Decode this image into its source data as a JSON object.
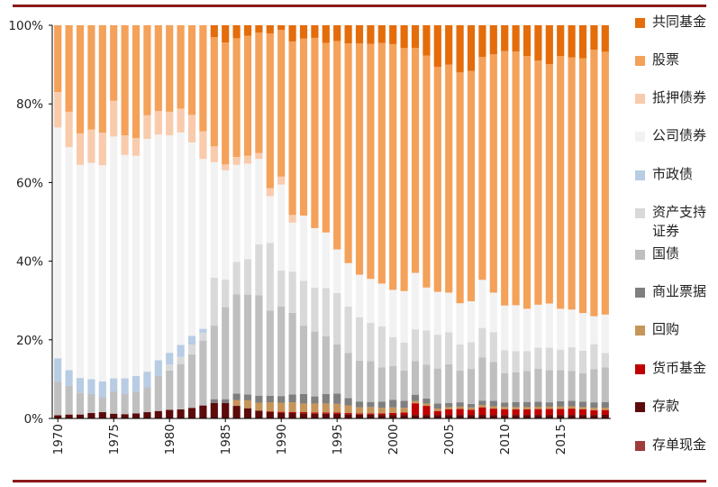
{
  "chart_data": {
    "type": "bar",
    "stacked": true,
    "normalized": true,
    "title": "",
    "xlabel": "",
    "ylabel": "",
    "ylim": [
      0,
      100
    ],
    "yticks": [
      "0%",
      "20%",
      "40%",
      "60%",
      "80%",
      "100%"
    ],
    "xticks": [
      "1970",
      "1975",
      "1980",
      "1985",
      "1990",
      "1995",
      "2000",
      "2005",
      "2010",
      "2015"
    ],
    "categories": [
      1970,
      1971,
      1972,
      1973,
      1974,
      1975,
      1976,
      1977,
      1978,
      1979,
      1980,
      1981,
      1982,
      1983,
      1984,
      1985,
      1986,
      1987,
      1988,
      1989,
      1990,
      1991,
      1992,
      1993,
      1994,
      1995,
      1996,
      1997,
      1998,
      1999,
      2000,
      2001,
      2002,
      2003,
      2004,
      2005,
      2006,
      2007,
      2008,
      2009,
      2010,
      2011,
      2012,
      2013,
      2014,
      2015,
      2016,
      2017,
      2018,
      2019
    ],
    "legend_position": "right",
    "series": [
      {
        "name": "存单现金",
        "color": "#9e3b3b",
        "values": [
          0,
          0,
          0,
          0,
          0,
          0,
          0,
          0,
          0,
          0,
          0,
          0,
          0,
          0,
          0,
          0,
          0,
          0,
          0,
          0,
          0,
          0,
          0,
          0,
          0,
          0,
          0,
          0,
          0,
          0,
          0,
          0,
          0,
          0,
          0,
          0,
          0,
          0,
          0,
          0,
          0,
          0,
          0,
          0,
          0,
          0,
          0,
          0,
          0,
          0
        ]
      },
      {
        "name": "存款",
        "color": "#5c0a0a",
        "values": [
          0.8,
          1.0,
          1.0,
          1.4,
          1.6,
          1.2,
          1.1,
          1.3,
          1.6,
          1.9,
          2.2,
          2.3,
          2.7,
          3.3,
          3.9,
          3.9,
          3.2,
          2.6,
          2.0,
          1.6,
          1.4,
          1.4,
          1.3,
          1.2,
          1.2,
          1.2,
          1.1,
          1.0,
          1.0,
          0.9,
          0.9,
          0.9,
          0.9,
          0.9,
          0.9,
          0.9,
          0.9,
          0.9,
          0.9,
          0.9,
          0.9,
          0.9,
          0.9,
          0.9,
          0.9,
          0.9,
          0.9,
          0.9,
          0.9,
          0.9
        ]
      },
      {
        "name": "货币基金",
        "color": "#c00000",
        "values": [
          0,
          0,
          0,
          0,
          0,
          0,
          0,
          0,
          0,
          0,
          0,
          0,
          0,
          0,
          0,
          0,
          0,
          0,
          0,
          0.2,
          0.3,
          0.3,
          0.3,
          0.3,
          0.3,
          0.3,
          0.3,
          0.3,
          0.3,
          0.4,
          0.5,
          0.6,
          3.0,
          2.3,
          1.0,
          1.4,
          1.5,
          1.3,
          1.9,
          1.6,
          1.5,
          1.4,
          1.4,
          1.5,
          1.5,
          1.5,
          1.6,
          1.4,
          1.2,
          1.2
        ]
      },
      {
        "name": "回购",
        "color": "#c6955a",
        "values": [
          0,
          0,
          0,
          0,
          0,
          0,
          0,
          0,
          0,
          0,
          0,
          0,
          0,
          0,
          0,
          0,
          1.5,
          2.0,
          2.0,
          2.3,
          2.3,
          2.5,
          2.2,
          2.3,
          2.3,
          2.2,
          2.0,
          1.6,
          1.6,
          1.4,
          1.4,
          1.2,
          0.6,
          0.6,
          0.6,
          0.6,
          0.6,
          0.6,
          0.6,
          0.6,
          0.6,
          0.6,
          0.6,
          0.6,
          0.6,
          0.6,
          0.6,
          0.6,
          0.6,
          0.6
        ]
      },
      {
        "name": "商业票据",
        "color": "#7f7f7f",
        "values": [
          0,
          0,
          0,
          0,
          0,
          0,
          0,
          0,
          0,
          0,
          0,
          0,
          0,
          0,
          1.0,
          1.0,
          1.6,
          1.5,
          1.8,
          1.6,
          1.7,
          2.0,
          2.4,
          1.8,
          2.4,
          2.6,
          1.9,
          1.5,
          1.3,
          1.6,
          1.9,
          1.8,
          1.6,
          1.3,
          1.3,
          1.0,
          1.1,
          0.9,
          1.1,
          1.4,
          1.1,
          1.3,
          1.3,
          1.3,
          1.1,
          1.4,
          1.4,
          1.4,
          1.4,
          1.4
        ]
      },
      {
        "name": "国债",
        "color": "#bfbfbf",
        "values": [
          8.5,
          7.3,
          5.5,
          4.8,
          3.8,
          5.6,
          5.1,
          5.5,
          6.3,
          8.9,
          10.0,
          11.4,
          13.6,
          16.5,
          18.7,
          23.4,
          25.3,
          25.4,
          25.5,
          21.6,
          22.8,
          21.2,
          17.4,
          16.5,
          14.7,
          12.5,
          11.7,
          10.6,
          10.4,
          8.7,
          8.6,
          7.7,
          8.6,
          8.6,
          8.9,
          9.9,
          8.1,
          8.9,
          10.9,
          9.9,
          7.6,
          7.5,
          7.9,
          8.4,
          8.2,
          7.9,
          7.6,
          7.2,
          8.4,
          8.6
        ]
      },
      {
        "name": "资产支持证券",
        "color": "#d9d9d9",
        "values": [
          0,
          0,
          0,
          0,
          0,
          0,
          0,
          0,
          0,
          0,
          1.5,
          1.8,
          2.5,
          2.0,
          12.2,
          7.0,
          8.2,
          9.0,
          13.0,
          17.1,
          9.1,
          10.7,
          11.4,
          11.2,
          12.3,
          13.1,
          12.0,
          11.2,
          9.7,
          10.4,
          7.4,
          7.1,
          8.2,
          8.7,
          8.6,
          8.1,
          6.6,
          6.8,
          7.4,
          7.5,
          6.0,
          5.4,
          5.0,
          5.4,
          5.7,
          5.2,
          6.0,
          5.7,
          6.4,
          3.6
        ]
      },
      {
        "name": "市政债",
        "color": "#b8cce4",
        "values": [
          6.0,
          4.0,
          3.8,
          3.8,
          4.0,
          3.3,
          4.0,
          4.0,
          4.0,
          4.0,
          3.0,
          3.0,
          2.2,
          1.0,
          0,
          0,
          0,
          0,
          0,
          0,
          0,
          0,
          0,
          0,
          0,
          0,
          0,
          0,
          0,
          0,
          0,
          0,
          0,
          0,
          0,
          0,
          0,
          0,
          0,
          0,
          0,
          0,
          0,
          0,
          0,
          0,
          0,
          0,
          0,
          0
        ]
      },
      {
        "name": "公司债券",
        "color": "#f2f2f2",
        "values": [
          58.7,
          56.7,
          54.2,
          55.0,
          55.0,
          60.9,
          56.8,
          56.0,
          59.2,
          57.4,
          55.3,
          53.5,
          49.2,
          43.2,
          29.4,
          27.8,
          24.7,
          24.3,
          21.7,
          11.8,
          21.9,
          12.7,
          16.6,
          15.1,
          14.1,
          11.1,
          11.3,
          11.1,
          11.2,
          10.9,
          12.0,
          13.1,
          14.5,
          10.9,
          10.9,
          10.1,
          10.5,
          10.4,
          12.1,
          10.1,
          11.6,
          11.7,
          10.8,
          11.0,
          11.2,
          10.4,
          9.6,
          9.6,
          7.1,
          9.6
        ]
      },
      {
        "name": "抵押债券",
        "color": "#f8cbad",
        "values": [
          9.0,
          9.0,
          8.0,
          8.5,
          8.3,
          9.0,
          5.0,
          4.5,
          6.0,
          6.0,
          6.0,
          6.0,
          7.0,
          7.0,
          4.0,
          1.5,
          2.0,
          2.0,
          1.5,
          2.0,
          2.0,
          2.0,
          0,
          0,
          0,
          0,
          0,
          0,
          0,
          0,
          0,
          0,
          0,
          0,
          0,
          0,
          0,
          0,
          0,
          0,
          0,
          0,
          0,
          0,
          0,
          0,
          0,
          0,
          0,
          0
        ]
      },
      {
        "name": "股票",
        "color": "#f4a15a",
        "values": [
          17.0,
          22.0,
          27.5,
          26.5,
          27.3,
          19.0,
          28.0,
          28.7,
          22.9,
          21.8,
          22.0,
          21.0,
          22.8,
          27.0,
          27.8,
          31.0,
          30.2,
          30.5,
          30.6,
          39.1,
          37.3,
          45.0,
          45.0,
          48.4,
          48.2,
          53.0,
          57.0,
          60.0,
          59.8,
          61.2,
          62.5,
          61.8,
          57.8,
          59.0,
          57.2,
          58.0,
          58.7,
          58.6,
          56.1,
          60.6,
          66.0,
          64.5,
          64.3,
          62.5,
          60.8,
          64.3,
          64.1,
          64.8,
          67.8,
          65.5
        ]
      },
      {
        "name": "共同基金",
        "color": "#e46c0a",
        "values": [
          0,
          0,
          0,
          0,
          0,
          0,
          0,
          0,
          0,
          0,
          0,
          0,
          0,
          0,
          3.0,
          4.4,
          3.3,
          2.7,
          1.9,
          2.1,
          1.2,
          4.2,
          3.4,
          3.2,
          4.5,
          4.0,
          4.7,
          4.7,
          4.7,
          4.5,
          4.8,
          5.8,
          5.8,
          7.7,
          10.6,
          10.0,
          12.0,
          11.6,
          8.0,
          7.4,
          6.7,
          6.7,
          7.8,
          9.0,
          9.9,
          7.8,
          8.2,
          8.4,
          6.2,
          6.6
        ]
      }
    ]
  },
  "legend": [
    {
      "label": "共同基金",
      "color": "#e46c0a"
    },
    {
      "label": "股票",
      "color": "#f4a15a"
    },
    {
      "label": "抵押债券",
      "color": "#f8cbad"
    },
    {
      "label": "公司债券",
      "color": "#f2f2f2"
    },
    {
      "label": "市政债",
      "color": "#b8cce4"
    },
    {
      "label": "资产支持证券",
      "color": "#d9d9d9"
    },
    {
      "label": "国债",
      "color": "#bfbfbf"
    },
    {
      "label": "商业票据",
      "color": "#7f7f7f"
    },
    {
      "label": "回购",
      "color": "#c6955a"
    },
    {
      "label": "货币基金",
      "color": "#c00000"
    },
    {
      "label": "存款",
      "color": "#5c0a0a"
    },
    {
      "label": "存单现金",
      "color": "#9e3b3b"
    }
  ]
}
